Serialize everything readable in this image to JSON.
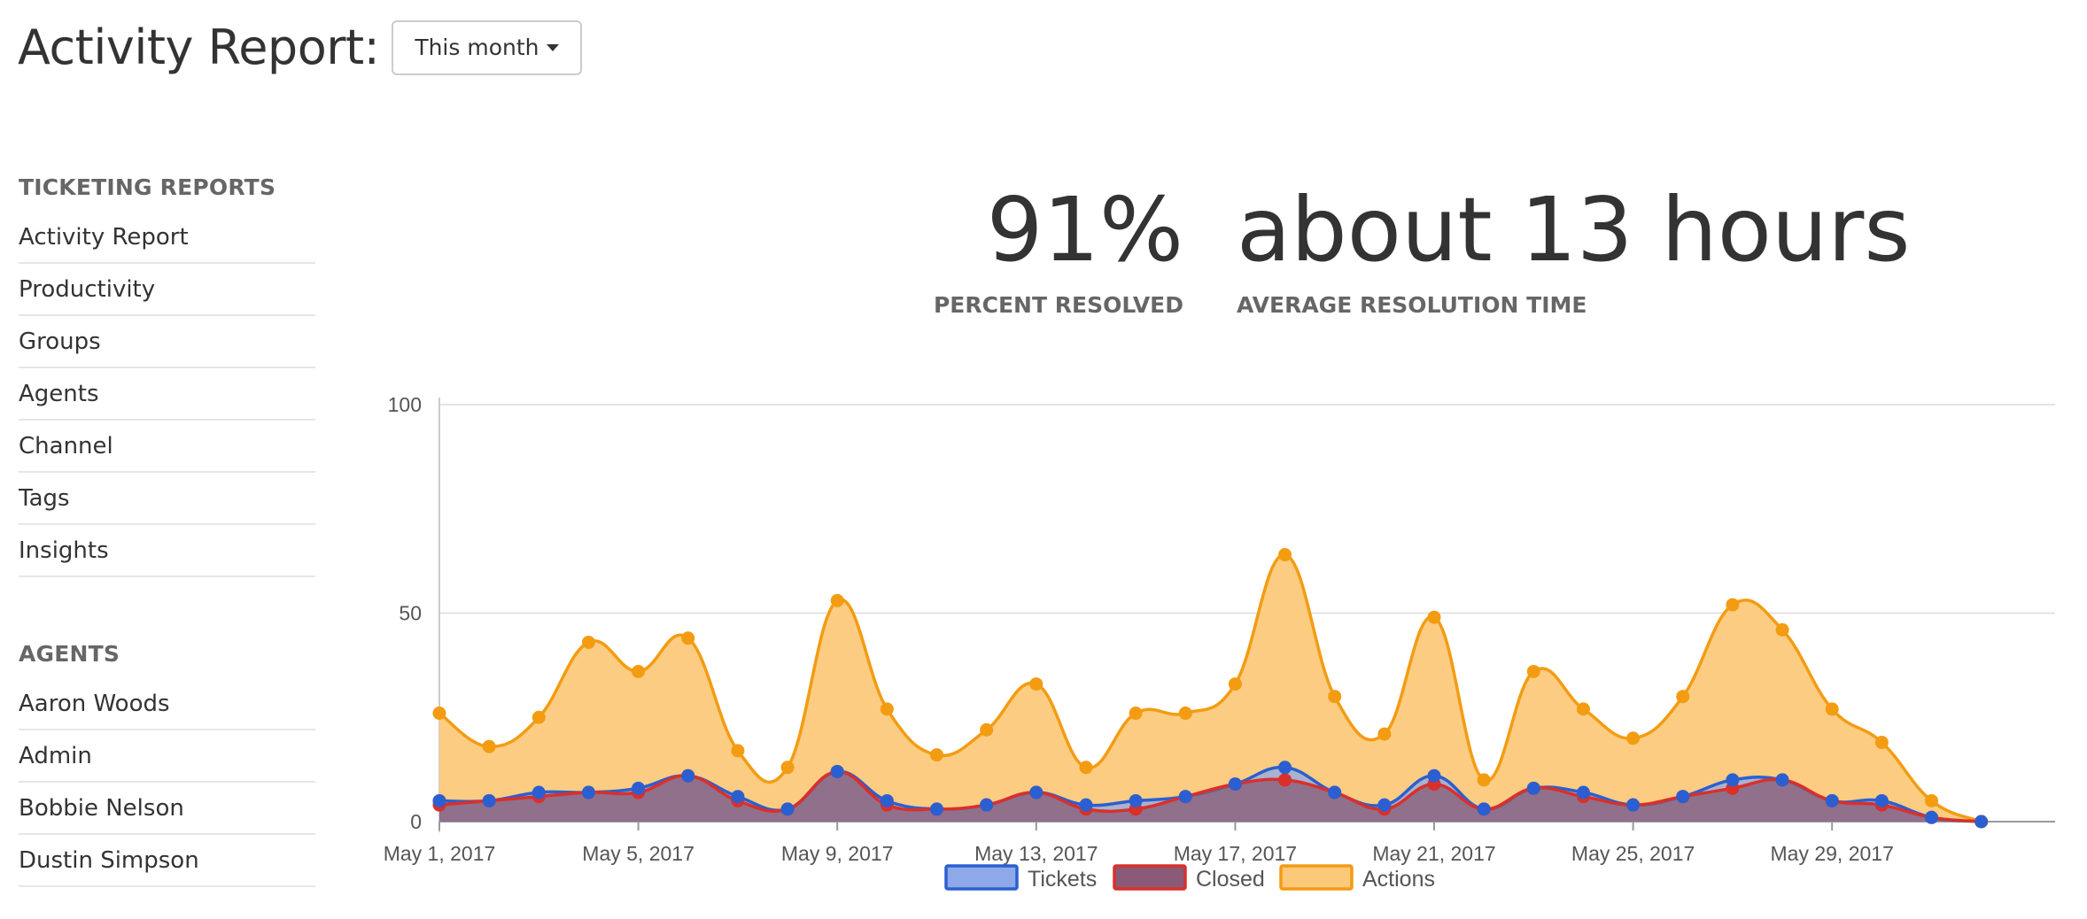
{
  "header": {
    "title": "Activity Report:",
    "period_label": "This month"
  },
  "sidebar": {
    "ticketing_title": "TICKETING REPORTS",
    "ticketing_items": [
      "Activity Report",
      "Productivity",
      "Groups",
      "Agents",
      "Channel",
      "Tags",
      "Insights"
    ],
    "agents_title": "AGENTS",
    "agent_items": [
      "Aaron Woods",
      "Admin",
      "Bobbie Nelson",
      "Dustin Simpson"
    ]
  },
  "stats": {
    "percent_resolved_value": "91%",
    "percent_resolved_label": "PERCENT RESOLVED",
    "avg_resolution_value": "about 13 hours",
    "avg_resolution_label": "AVERAGE RESOLUTION TIME"
  },
  "chart_data": {
    "type": "area",
    "x": [
      "May 1, 2017",
      "May 2, 2017",
      "May 3, 2017",
      "May 4, 2017",
      "May 5, 2017",
      "May 6, 2017",
      "May 7, 2017",
      "May 8, 2017",
      "May 9, 2017",
      "May 10, 2017",
      "May 11, 2017",
      "May 12, 2017",
      "May 13, 2017",
      "May 14, 2017",
      "May 15, 2017",
      "May 16, 2017",
      "May 17, 2017",
      "May 18, 2017",
      "May 19, 2017",
      "May 20, 2017",
      "May 21, 2017",
      "May 22, 2017",
      "May 23, 2017",
      "May 24, 2017",
      "May 25, 2017",
      "May 26, 2017",
      "May 27, 2017",
      "May 28, 2017",
      "May 29, 2017",
      "May 30, 2017",
      "May 31, 2017",
      "Jun 1, 2017"
    ],
    "x_tick_labels": [
      "May 1, 2017",
      "May 5, 2017",
      "May 9, 2017",
      "May 13, 2017",
      "May 17, 2017",
      "May 21, 2017",
      "May 25, 2017",
      "May 29, 2017"
    ],
    "y_ticks": [
      0,
      50,
      100
    ],
    "ylim": [
      0,
      100
    ],
    "grid": true,
    "legend_position": "bottom",
    "series": [
      {
        "name": "Tickets",
        "color": "#2b5fd1",
        "fill": "#8ea9e8",
        "values": [
          5,
          5,
          7,
          7,
          8,
          11,
          6,
          3,
          12,
          5,
          3,
          4,
          7,
          4,
          5,
          6,
          9,
          13,
          7,
          4,
          11,
          3,
          8,
          7,
          4,
          6,
          10,
          10,
          5,
          5,
          1,
          0
        ]
      },
      {
        "name": "Closed",
        "color": "#d9302a",
        "fill": "#8a5a76",
        "values": [
          4,
          5,
          6,
          7,
          7,
          11,
          5,
          3,
          12,
          4,
          3,
          4,
          7,
          3,
          3,
          6,
          9,
          10,
          7,
          3,
          9,
          3,
          8,
          6,
          4,
          6,
          8,
          10,
          5,
          4,
          1,
          0
        ]
      },
      {
        "name": "Actions",
        "color": "#f39c12",
        "fill": "#fcc97b",
        "values": [
          26,
          18,
          25,
          43,
          36,
          44,
          17,
          13,
          53,
          27,
          16,
          22,
          33,
          13,
          26,
          26,
          33,
          64,
          30,
          21,
          49,
          10,
          36,
          27,
          20,
          30,
          52,
          46,
          27,
          19,
          5,
          0
        ]
      }
    ]
  }
}
